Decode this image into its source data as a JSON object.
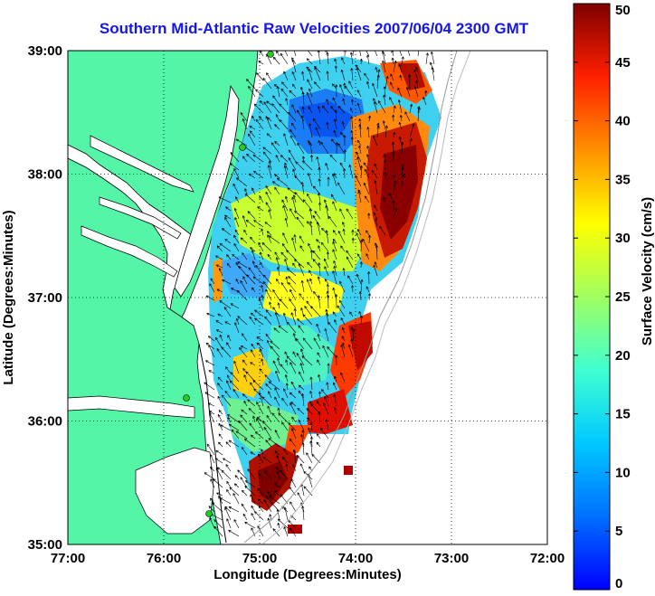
{
  "title": "Southern Mid-Atlantic Raw Velocities 2007/06/04 2300 GMT",
  "colors": {
    "land": "#55f5a8",
    "ocean": "#ffffff",
    "vector": "#000000",
    "title": "#1515ee",
    "isobath": "#999999",
    "station": "#22cc22"
  },
  "chart_data": {
    "type": "heatmap",
    "xlabel": "Longitude (Degrees:Minutes)",
    "ylabel": "Latitude (Degrees:Minutes)",
    "xlim": [
      -77,
      -72
    ],
    "ylim": [
      35,
      39
    ],
    "x_ticks": [
      {
        "value": -77,
        "label": "77:00"
      },
      {
        "value": -76,
        "label": "76:00"
      },
      {
        "value": -75,
        "label": "75:00"
      },
      {
        "value": -74,
        "label": "74:00"
      },
      {
        "value": -73,
        "label": "73:00"
      },
      {
        "value": -72,
        "label": "72:00"
      }
    ],
    "y_ticks": [
      {
        "value": 35,
        "label": "35:00"
      },
      {
        "value": 36,
        "label": "36:00"
      },
      {
        "value": 37,
        "label": "37:00"
      },
      {
        "value": 38,
        "label": "38:00"
      },
      {
        "value": 39,
        "label": "39:00"
      }
    ],
    "grid": true,
    "colorbar": {
      "label": "Surface Velocity (cm/s)",
      "range": [
        0,
        50
      ],
      "ticks": [
        0,
        5,
        10,
        15,
        20,
        25,
        30,
        35,
        40,
        45,
        50
      ],
      "colormap": "jet"
    }
  }
}
